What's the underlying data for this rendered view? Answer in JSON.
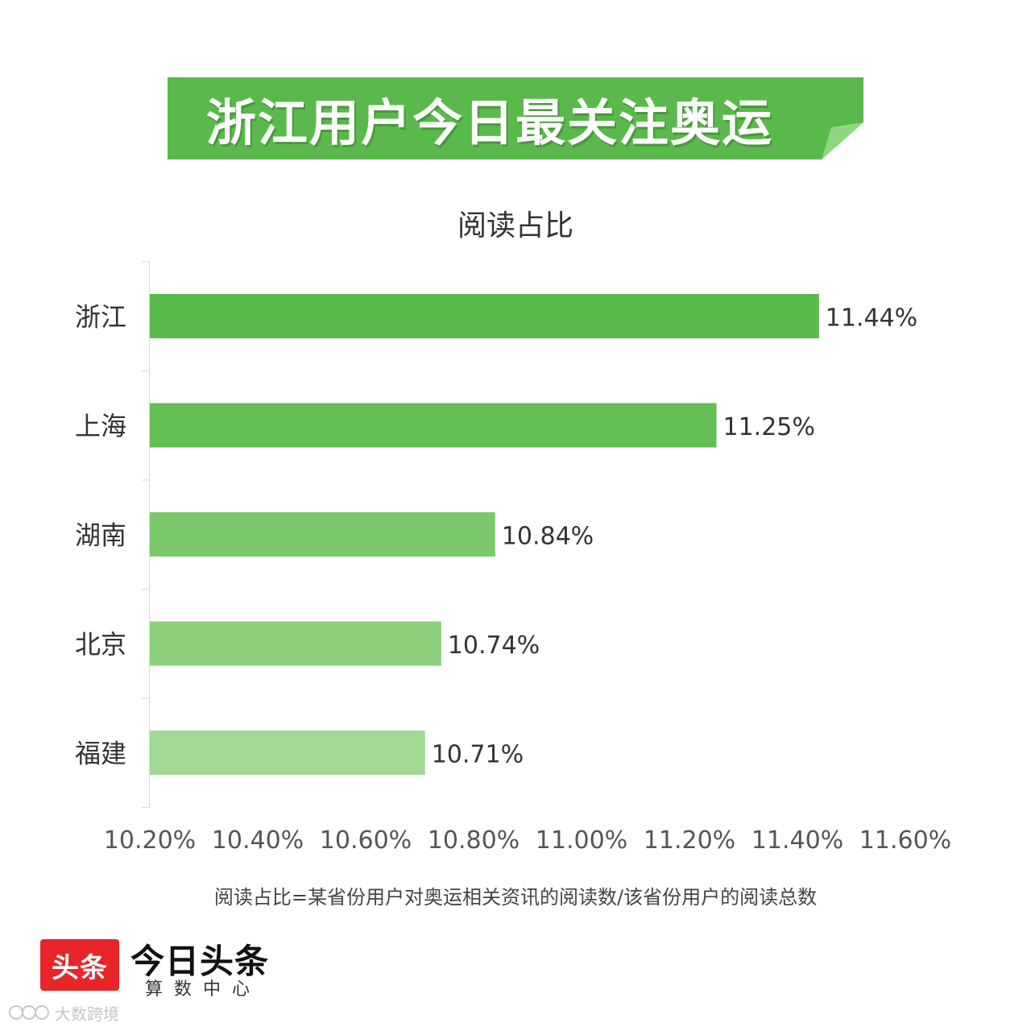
{
  "banner": {
    "title": "浙江用户今日最关注奥运",
    "color": "#5ab94b"
  },
  "chart_data": {
    "type": "bar",
    "orientation": "horizontal",
    "title": "阅读占比",
    "categories": [
      "浙江",
      "上海",
      "湖南",
      "北京",
      "福建"
    ],
    "values": [
      11.44,
      11.25,
      10.84,
      10.74,
      10.71
    ],
    "value_labels": [
      "11.44%",
      "11.25%",
      "10.84%",
      "10.74%",
      "10.71%"
    ],
    "bar_colors": [
      "#5ab94b",
      "#63be53",
      "#7cc96c",
      "#8ccf7c",
      "#a2d995"
    ],
    "xlim": [
      10.2,
      11.6
    ],
    "x_ticks": [
      10.2,
      10.4,
      10.6,
      10.8,
      11.0,
      11.2,
      11.4,
      11.6
    ],
    "x_tick_labels": [
      "10.20%",
      "10.40%",
      "10.60%",
      "10.80%",
      "11.00%",
      "11.20%",
      "11.40%",
      "11.60%"
    ],
    "grid": false,
    "legend": "none"
  },
  "footnote": "阅读占比=某省份用户对奥运相关资讯的阅读数/该省份用户的阅读总数",
  "brand": {
    "logo_text": "头条",
    "name": "今日头条",
    "sub": "算数中心",
    "logo_color": "#e8262a"
  },
  "watermark": {
    "text": "大数跨境"
  }
}
